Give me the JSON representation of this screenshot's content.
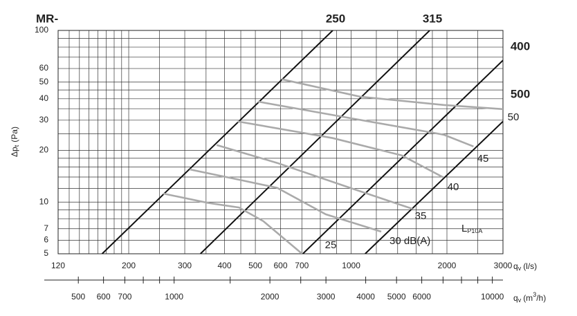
{
  "chart_data": {
    "type": "line",
    "title": "MR-",
    "ylabel": {
      "text": "Δp",
      "sub": "t",
      "unit": "(Pa)"
    },
    "xlabel": {
      "text": "q",
      "sub": "v",
      "unit": "(l/s)"
    },
    "x2label": {
      "text": "q",
      "sub": "v",
      "unit": "(m",
      "sup": "3",
      "unit_end": "/h)"
    },
    "annotation": {
      "text": "L",
      "sub": "P10A"
    },
    "log_x": true,
    "log_y": true,
    "grid": true,
    "xlim": [
      120,
      3000
    ],
    "xticks": [
      120,
      200,
      300,
      400,
      500,
      600,
      700,
      1000,
      2000,
      3000
    ],
    "x_minor_ticks": [
      130,
      140,
      150,
      160,
      170,
      180,
      190,
      250,
      350,
      450,
      800,
      900,
      1200,
      1400,
      1600,
      1800,
      2500
    ],
    "ylim": [
      5,
      100
    ],
    "yticks": [
      5,
      6,
      7,
      10,
      20,
      30,
      40,
      50,
      60,
      100
    ],
    "y_minor_ticks": [
      8,
      9,
      12,
      14,
      16,
      18,
      25,
      35,
      45,
      70,
      80,
      90
    ],
    "x2lim": [
      432,
      10800
    ],
    "x2ticks": [
      500,
      600,
      700,
      1000,
      2000,
      3000,
      4000,
      5000,
      6000,
      10000
    ],
    "x2_minor_ticks": [
      800,
      900,
      1500,
      2500,
      7000,
      8000,
      9000
    ],
    "series": [
      {
        "name": "250",
        "color": "#111111",
        "x": [
          165,
          875
        ],
        "values": [
          5,
          100
        ]
      },
      {
        "name": "315",
        "color": "#111111",
        "x": [
          336,
          1766
        ],
        "values": [
          5,
          100
        ]
      },
      {
        "name": "400",
        "color": "#111111",
        "x": [
          705,
          3000
        ],
        "values": [
          5,
          67
        ]
      },
      {
        "name": "500",
        "color": "#111111",
        "x": [
          1107,
          3000
        ],
        "values": [
          5,
          29.5
        ]
      },
      {
        "name": "50",
        "color": "#aaaaaa",
        "x": [
          606,
          1069,
          1953,
          3000
        ],
        "values": [
          51.9,
          41.1,
          36.8,
          34.8
        ]
      },
      {
        "name": "45",
        "color": "#aaaaaa",
        "x": [
          509,
          967,
          1953,
          2424
        ],
        "values": [
          38.5,
          31.1,
          24.7,
          21.1
        ]
      },
      {
        "name": "40",
        "color": "#aaaaaa",
        "x": [
          440,
          875,
          1444,
          1953
        ],
        "values": [
          29.5,
          23.6,
          18.7,
          13.9
        ]
      },
      {
        "name": "35",
        "color": "#aaaaaa",
        "x": [
          378,
          586,
          967,
          1558
        ],
        "values": [
          21.5,
          16.9,
          12.3,
          9.14
        ]
      },
      {
        "name": "30 dB(A)",
        "color": "#aaaaaa",
        "x": [
          311,
          444,
          586,
          832,
          1243
        ],
        "values": [
          15.5,
          13.5,
          12.1,
          8.49,
          6.73
        ]
      },
      {
        "name": "25",
        "color": "#aaaaaa",
        "x": [
          257,
          354,
          444,
          530,
          701
        ],
        "values": [
          11.2,
          9.9,
          9.3,
          7.74,
          5
        ]
      }
    ]
  }
}
